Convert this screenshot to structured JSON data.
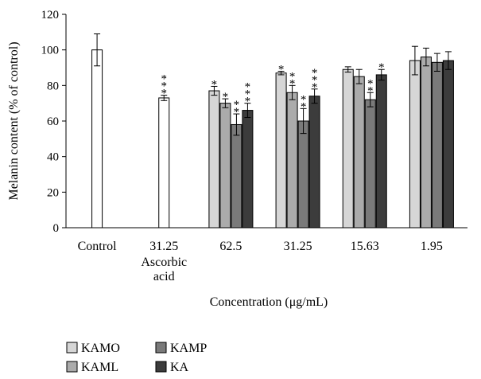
{
  "chart_data": {
    "type": "bar",
    "title": "",
    "xlabel": "Concentration (μg/mL)",
    "ylabel": "Melanin content (% of control)",
    "ylim": [
      0,
      120
    ],
    "yticks": [
      0,
      20,
      40,
      60,
      80,
      100,
      120
    ],
    "grid": false,
    "legend_position": "bottom-left",
    "groups": [
      {
        "label": "Control",
        "sublabel": "",
        "bars": [
          {
            "series": "reference",
            "value": 100,
            "error": 9,
            "sig": ""
          }
        ]
      },
      {
        "label": "31.25",
        "sublabel": "Ascorbic acid",
        "bars": [
          {
            "series": "reference",
            "value": 73,
            "error": 1.5,
            "sig": "***"
          }
        ]
      },
      {
        "label": "62.5",
        "sublabel": "",
        "bars": [
          {
            "series": "KAMO",
            "value": 77,
            "error": 2.5,
            "sig": "*"
          },
          {
            "series": "KAML",
            "value": 70,
            "error": 2.5,
            "sig": "*"
          },
          {
            "series": "KAMP",
            "value": 58,
            "error": 6,
            "sig": "**"
          },
          {
            "series": "KA",
            "value": 66,
            "error": 4,
            "sig": "***"
          }
        ]
      },
      {
        "label": "31.25",
        "sublabel": "",
        "bars": [
          {
            "series": "KAMO",
            "value": 87,
            "error": 1,
            "sig": "*"
          },
          {
            "series": "KAML",
            "value": 76,
            "error": 4,
            "sig": "**"
          },
          {
            "series": "KAMP",
            "value": 60,
            "error": 7,
            "sig": "**"
          },
          {
            "series": "KA",
            "value": 74,
            "error": 4,
            "sig": "***"
          }
        ]
      },
      {
        "label": "15.63",
        "sublabel": "",
        "bars": [
          {
            "series": "KAMO",
            "value": 89,
            "error": 1.5,
            "sig": ""
          },
          {
            "series": "KAML",
            "value": 85,
            "error": 4,
            "sig": ""
          },
          {
            "series": "KAMP",
            "value": 72,
            "error": 4,
            "sig": "**"
          },
          {
            "series": "KA",
            "value": 86,
            "error": 3,
            "sig": "*"
          }
        ]
      },
      {
        "label": "1.95",
        "sublabel": "",
        "bars": [
          {
            "series": "KAMO",
            "value": 94,
            "error": 8,
            "sig": ""
          },
          {
            "series": "KAML",
            "value": 96,
            "error": 5,
            "sig": ""
          },
          {
            "series": "KAMP",
            "value": 93,
            "error": 5,
            "sig": ""
          },
          {
            "series": "KA",
            "value": 94,
            "error": 5,
            "sig": ""
          }
        ]
      }
    ],
    "series": [
      {
        "name": "KAMO",
        "color": "#d6d6d6"
      },
      {
        "name": "KAML",
        "color": "#ababab"
      },
      {
        "name": "KAMP",
        "color": "#7a7a7a"
      },
      {
        "name": "KA",
        "color": "#3c3c3c"
      }
    ],
    "reference_color": "#ffffff"
  }
}
